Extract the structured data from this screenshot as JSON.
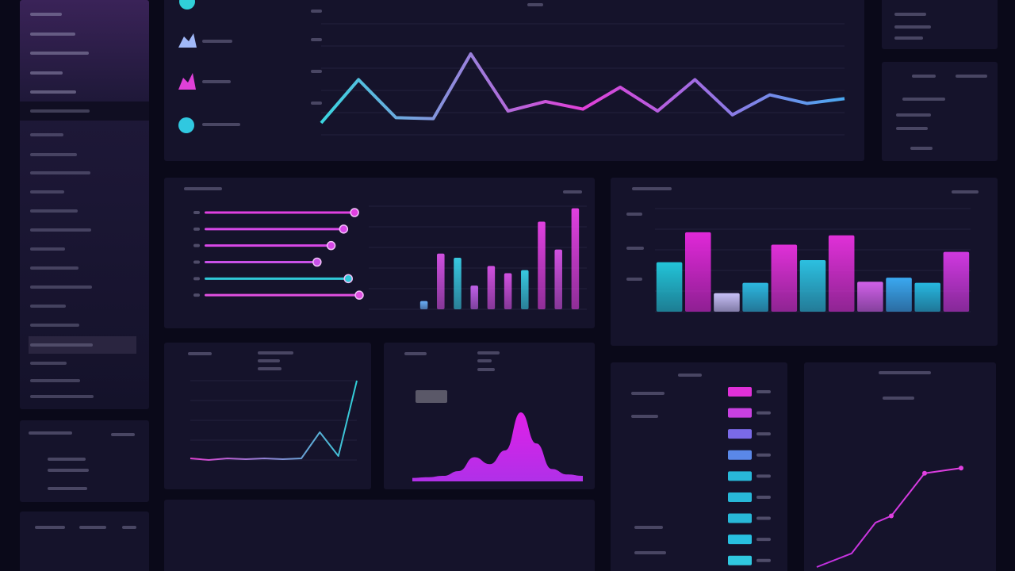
{
  "chart_data": [
    {
      "type": "line",
      "ylim": [
        0,
        100
      ],
      "values": [
        12.5,
        58,
        18,
        17,
        85,
        25,
        35,
        27,
        50,
        25,
        58,
        21,
        42,
        33,
        38
      ],
      "colors": [
        "#3ad6e0",
        "#e23fd8",
        "#4aa8f0"
      ]
    },
    {
      "type": "hbar",
      "xlim": [
        0,
        100
      ],
      "values": [
        96,
        89,
        81,
        72,
        92,
        99
      ],
      "colors": [
        "#e040e0",
        "#d848e8",
        "#d848e8",
        "#c850e8",
        "#30c8d8",
        "#e050e0"
      ]
    },
    {
      "type": "bar",
      "ylim": [
        0,
        100
      ],
      "values": [
        8,
        54,
        50,
        23,
        42,
        35,
        38,
        85,
        58,
        98
      ],
      "colors": [
        "#6ab0f8",
        "#d050e0",
        "#38c8e0",
        "#c060e8",
        "#d050e0",
        "#d050e0",
        "#38c8e0",
        "#e040e0",
        "#d050e0",
        "#e040e0"
      ]
    },
    {
      "type": "bar",
      "ylim": [
        0,
        100
      ],
      "values": [
        48,
        77,
        18,
        28,
        65,
        50,
        74,
        29,
        33,
        28,
        58
      ],
      "colors": [
        "#22c4d8",
        "#e028d8",
        "#c8c0f8",
        "#2cb8e0",
        "#e030d8",
        "#2cc0e0",
        "#e030d8",
        "#d060e8",
        "#3aa8f0",
        "#26b8e0",
        "#d038e0"
      ]
    },
    {
      "type": "line",
      "ylim": [
        0,
        100
      ],
      "values": [
        2,
        0,
        2,
        1,
        2,
        1,
        2,
        35,
        5,
        100
      ],
      "colors": [
        "#e040d0",
        "#30d0d8"
      ]
    },
    {
      "type": "area",
      "ylim": [
        0,
        100
      ],
      "values": [
        5,
        6,
        8,
        15,
        35,
        25,
        45,
        100,
        55,
        18,
        10,
        8
      ],
      "colors": [
        "#e020e8",
        "#b030e8"
      ]
    },
    {
      "type": "hbar",
      "xlim": [
        0,
        100
      ],
      "values": [
        100,
        100,
        100,
        100,
        100,
        100,
        100,
        100,
        100
      ],
      "colors": [
        "#e030d8",
        "#c840e0",
        "#7a6ae8",
        "#5a88e8",
        "#28b8d8",
        "#28b8d8",
        "#28b8d8",
        "#28c0e0",
        "#30c8e0"
      ]
    },
    {
      "type": "line",
      "xlim": [
        0,
        100
      ],
      "ylim": [
        0,
        100
      ],
      "x": [
        0,
        22,
        37,
        47,
        68,
        91
      ],
      "values": [
        0,
        8,
        26,
        30,
        55,
        58
      ],
      "colors": [
        "#c030e0",
        "#e040e0"
      ]
    }
  ]
}
